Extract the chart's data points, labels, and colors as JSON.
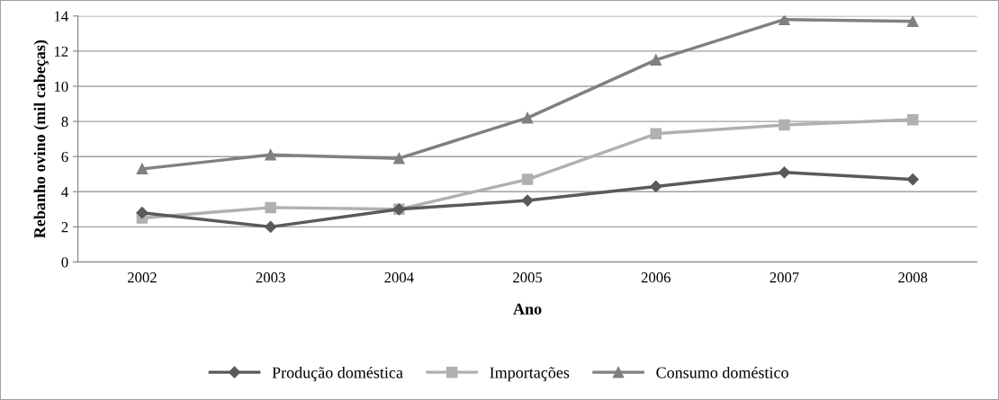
{
  "chart_data": {
    "type": "line",
    "xlabel": "Ano",
    "ylabel": "Rebanho ovino (mil cabeças)",
    "categories": [
      "2002",
      "2003",
      "2004",
      "2005",
      "2006",
      "2007",
      "2008"
    ],
    "series": [
      {
        "name": "Produção doméstica",
        "color": "#5a5a5a",
        "marker": "diamond",
        "values": [
          2.8,
          2.0,
          3.0,
          3.5,
          4.3,
          5.1,
          4.7
        ]
      },
      {
        "name": "Importações",
        "color": "#b0b0b0",
        "marker": "square",
        "values": [
          2.5,
          3.1,
          3.0,
          4.7,
          7.3,
          7.8,
          8.1
        ]
      },
      {
        "name": "Consumo doméstico",
        "color": "#808080",
        "marker": "triangle",
        "values": [
          5.3,
          6.1,
          5.9,
          8.2,
          11.5,
          13.8,
          13.7
        ]
      }
    ],
    "ylim": [
      0,
      14
    ],
    "yticks": [
      0,
      2,
      4,
      6,
      8,
      10,
      12,
      14
    ],
    "grid": "y",
    "legend": "bottom",
    "line_style": "solid"
  }
}
